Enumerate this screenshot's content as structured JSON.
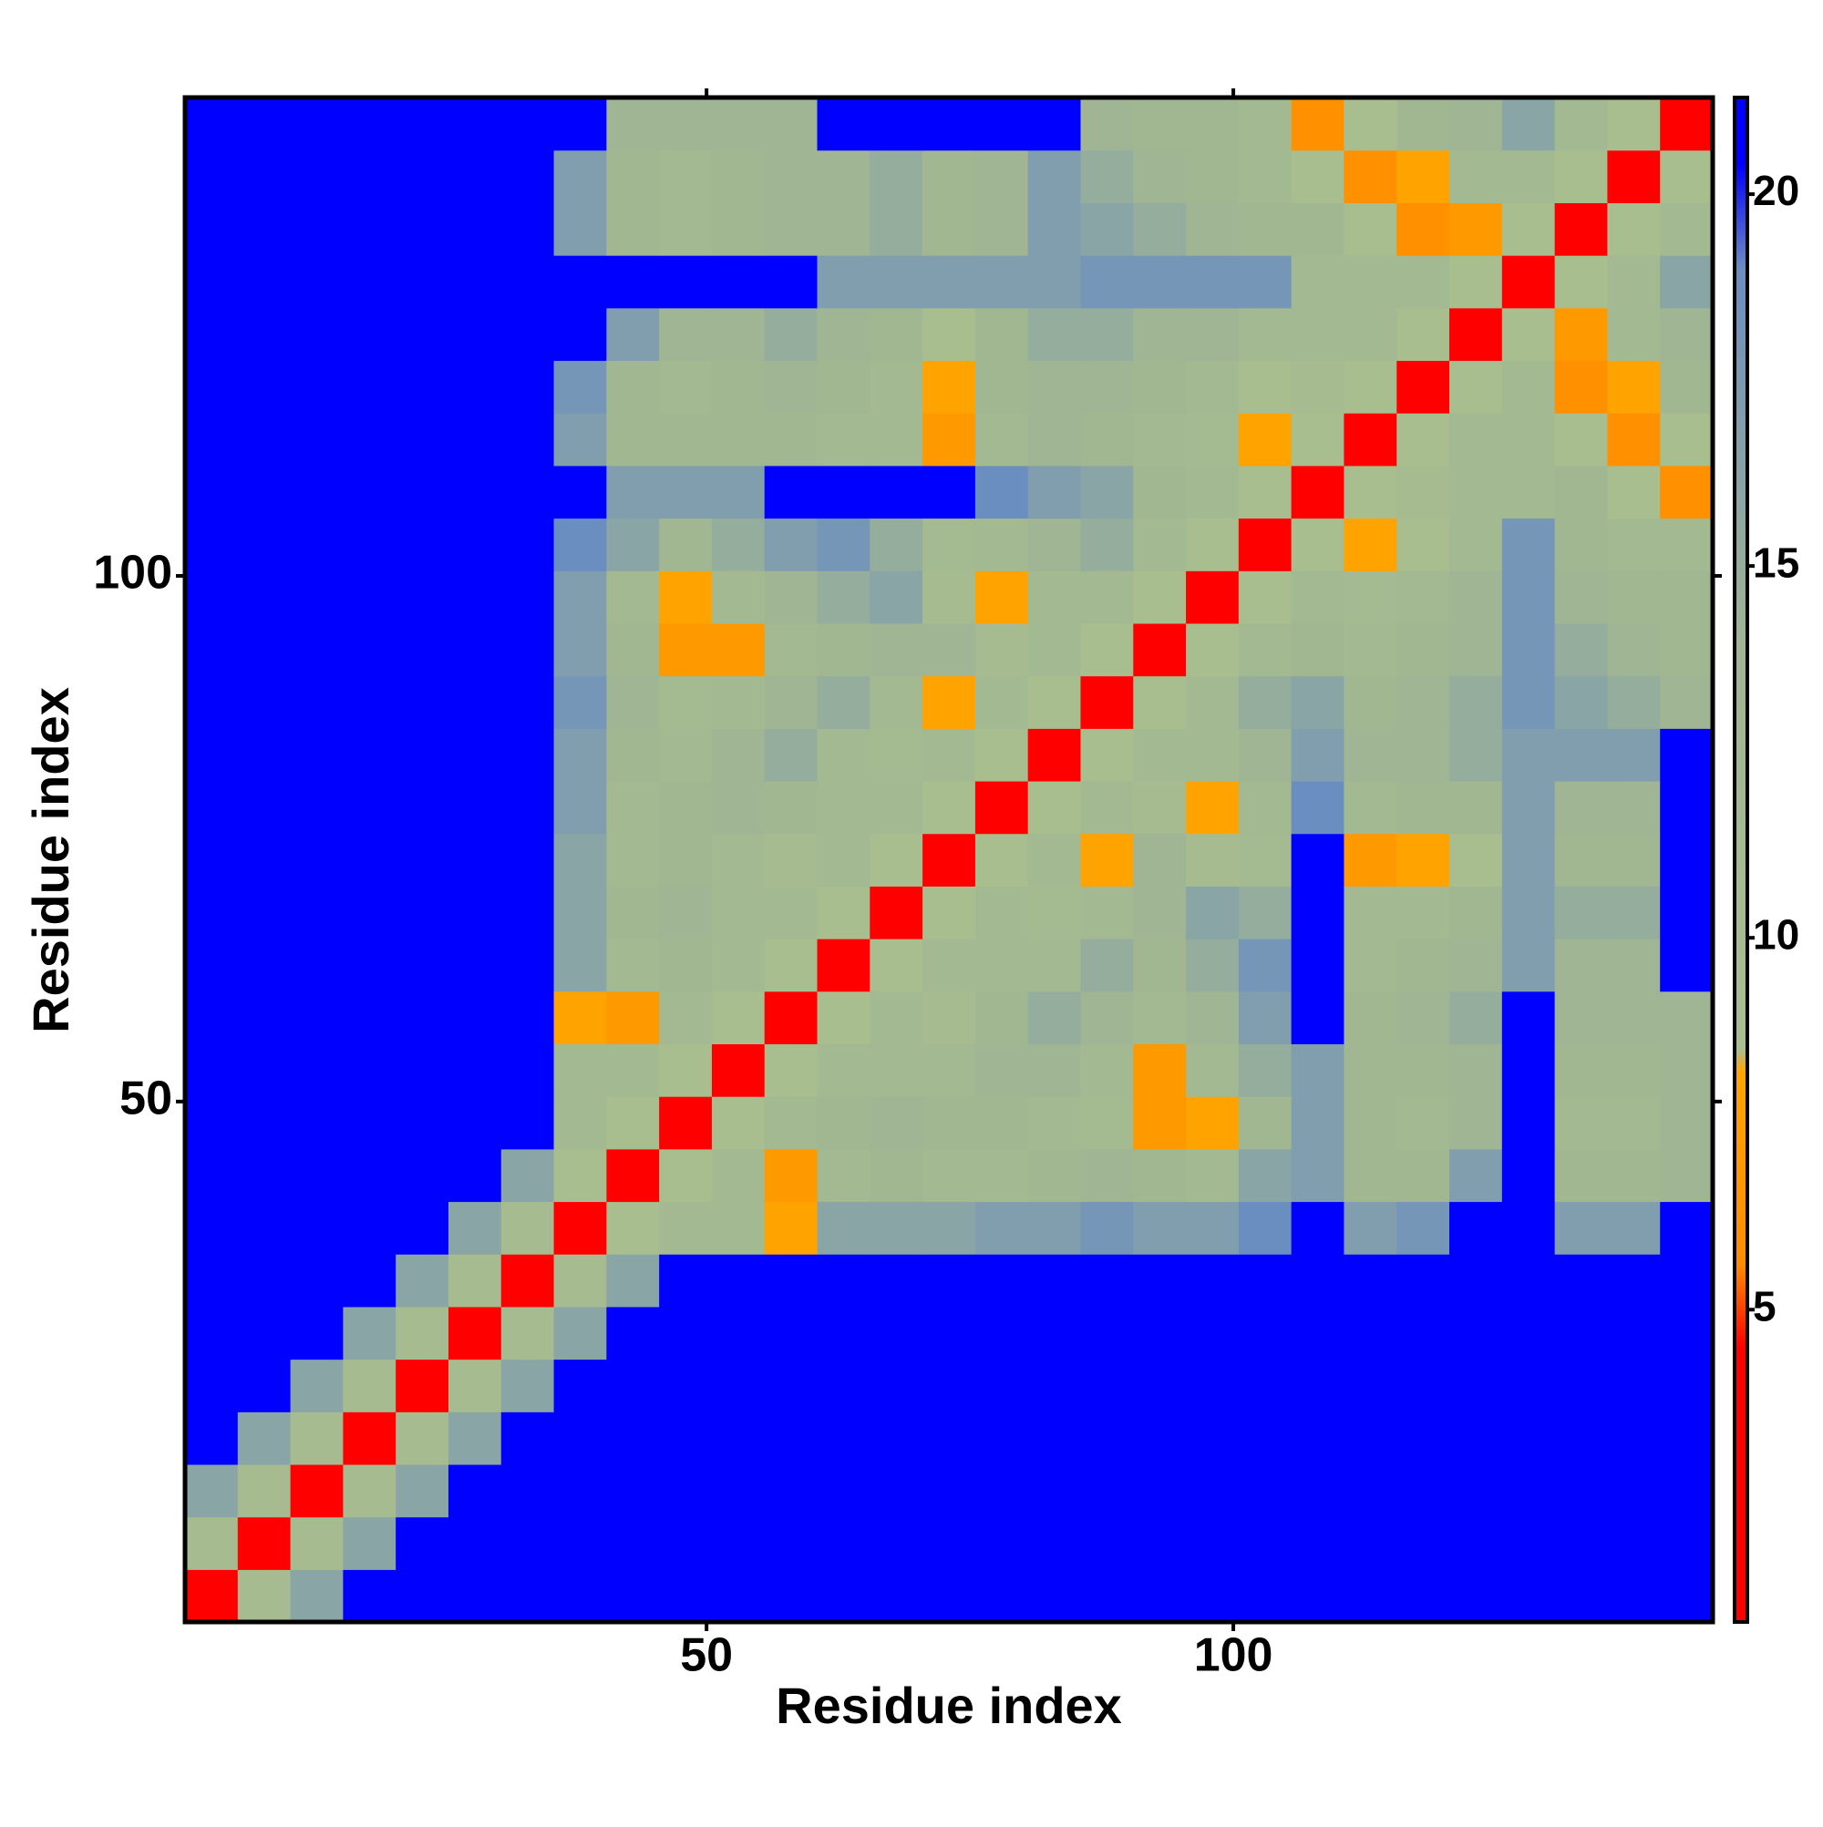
{
  "chart_data": {
    "type": "heatmap",
    "x_label": "Residue index",
    "y_label": "Residue index",
    "x": [
      3,
      8,
      13,
      18,
      23,
      28,
      33,
      38,
      43,
      48,
      53,
      58,
      63,
      68,
      73,
      78,
      83,
      88,
      93,
      98,
      103,
      108,
      113,
      118,
      123,
      128,
      133,
      138,
      143
    ],
    "y": [
      3,
      8,
      13,
      18,
      23,
      28,
      33,
      38,
      43,
      48,
      53,
      58,
      63,
      68,
      73,
      78,
      83,
      88,
      93,
      98,
      103,
      108,
      113,
      118,
      123,
      128,
      133,
      138,
      143
    ],
    "xlim": [
      0.5,
      145.5
    ],
    "ylim": [
      0.5,
      145.5
    ],
    "xticks": [
      50,
      100
    ],
    "yticks": [
      50,
      100
    ],
    "z": [
      [
        3,
        10,
        16,
        21,
        21,
        21,
        21,
        21,
        21,
        21,
        21,
        21,
        21,
        21,
        21,
        21,
        21,
        21,
        21,
        21,
        21,
        21,
        21,
        21,
        21,
        21,
        21,
        21,
        21
      ],
      [
        10,
        3,
        10,
        16,
        21,
        21,
        21,
        21,
        21,
        21,
        21,
        21,
        21,
        21,
        21,
        21,
        21,
        21,
        21,
        21,
        21,
        21,
        21,
        21,
        21,
        21,
        21,
        21,
        21
      ],
      [
        16,
        10,
        3,
        10,
        16,
        21,
        21,
        21,
        21,
        21,
        21,
        21,
        21,
        21,
        21,
        21,
        21,
        21,
        21,
        21,
        21,
        21,
        21,
        21,
        21,
        21,
        21,
        21,
        21
      ],
      [
        21,
        16,
        10,
        3,
        10,
        16,
        21,
        21,
        21,
        21,
        21,
        21,
        21,
        21,
        21,
        21,
        21,
        21,
        21,
        21,
        21,
        21,
        21,
        21,
        21,
        21,
        21,
        21,
        21
      ],
      [
        21,
        21,
        16,
        10,
        3,
        10,
        16,
        21,
        21,
        21,
        21,
        21,
        21,
        21,
        21,
        21,
        21,
        21,
        21,
        21,
        21,
        21,
        21,
        21,
        21,
        21,
        21,
        21,
        21
      ],
      [
        21,
        21,
        21,
        16,
        10,
        3,
        10,
        16,
        21,
        21,
        21,
        21,
        21,
        21,
        21,
        21,
        21,
        21,
        21,
        21,
        21,
        21,
        21,
        21,
        21,
        21,
        21,
        21,
        21
      ],
      [
        21,
        21,
        21,
        21,
        16,
        10,
        3,
        10,
        16,
        21,
        21,
        21,
        21,
        21,
        21,
        21,
        21,
        21,
        21,
        21,
        21,
        21,
        21,
        21,
        21,
        21,
        21,
        21,
        21
      ],
      [
        21,
        21,
        21,
        21,
        21,
        16,
        10,
        3,
        9,
        12,
        12,
        8,
        16,
        16,
        16,
        17,
        17,
        18,
        17,
        17,
        19,
        21,
        17,
        18,
        21,
        21,
        17,
        17,
        21
      ],
      [
        21,
        21,
        21,
        21,
        21,
        21,
        16,
        9,
        3,
        9,
        12,
        7,
        12,
        13,
        12,
        12,
        13,
        14,
        13,
        12,
        16,
        17,
        13,
        13,
        17,
        21,
        13,
        13,
        14
      ],
      [
        21,
        21,
        21,
        21,
        21,
        21,
        21,
        12,
        9,
        3,
        9,
        12,
        13,
        14,
        13,
        13,
        12,
        11,
        7,
        8,
        13,
        17,
        13,
        12,
        14,
        21,
        12,
        12,
        14
      ],
      [
        21,
        21,
        21,
        21,
        21,
        21,
        21,
        12,
        12,
        9,
        3,
        9,
        12,
        12,
        12,
        14,
        14,
        12,
        7,
        12,
        15,
        17,
        13,
        13,
        14,
        21,
        13,
        13,
        14
      ],
      [
        21,
        21,
        21,
        21,
        21,
        21,
        21,
        8,
        7,
        12,
        9,
        3,
        9,
        12,
        10,
        13,
        15,
        14,
        12,
        14,
        17,
        21,
        13,
        14,
        15,
        21,
        14,
        14,
        14
      ],
      [
        21,
        21,
        21,
        21,
        21,
        21,
        21,
        16,
        12,
        13,
        12,
        9,
        3,
        9,
        12,
        12,
        12,
        15,
        13,
        15,
        18,
        21,
        12,
        13,
        14,
        17,
        14,
        14,
        21
      ],
      [
        21,
        21,
        21,
        21,
        21,
        21,
        21,
        16,
        13,
        14,
        12,
        12,
        9,
        3,
        9,
        12,
        11,
        12,
        14,
        16,
        15,
        21,
        12,
        12,
        13,
        17,
        15,
        15,
        21
      ],
      [
        21,
        21,
        21,
        21,
        21,
        21,
        21,
        16,
        12,
        13,
        12,
        10,
        12,
        9,
        3,
        9,
        12,
        8,
        14,
        10,
        11,
        21,
        7,
        8,
        9,
        17,
        13,
        13,
        21
      ],
      [
        21,
        21,
        21,
        21,
        21,
        21,
        21,
        17,
        12,
        13,
        14,
        13,
        12,
        12,
        9,
        3,
        9,
        12,
        10,
        8,
        12,
        19,
        12,
        13,
        13,
        17,
        14,
        14,
        21
      ],
      [
        21,
        21,
        21,
        21,
        21,
        21,
        21,
        17,
        13,
        12,
        14,
        15,
        12,
        11,
        12,
        9,
        3,
        9,
        12,
        12,
        14,
        17,
        14,
        14,
        15,
        17,
        17,
        17,
        21
      ],
      [
        21,
        21,
        21,
        21,
        21,
        21,
        21,
        18,
        14,
        11,
        12,
        14,
        15,
        12,
        8,
        12,
        9,
        3,
        9,
        12,
        15,
        16,
        13,
        14,
        15,
        18,
        16,
        15,
        14
      ],
      [
        21,
        21,
        21,
        21,
        21,
        21,
        21,
        17,
        13,
        7,
        7,
        12,
        13,
        14,
        14,
        10,
        12,
        9,
        3,
        9,
        12,
        13,
        12,
        13,
        14,
        18,
        15,
        14,
        13
      ],
      [
        21,
        21,
        21,
        21,
        21,
        21,
        21,
        17,
        12,
        8,
        12,
        14,
        15,
        16,
        10,
        8,
        12,
        12,
        9,
        3,
        9,
        12,
        11,
        12,
        14,
        18,
        14,
        13,
        13
      ],
      [
        21,
        21,
        21,
        21,
        21,
        21,
        21,
        19,
        16,
        13,
        15,
        17,
        18,
        15,
        11,
        12,
        14,
        15,
        12,
        9,
        3,
        9,
        8,
        9,
        12,
        18,
        13,
        12,
        12
      ],
      [
        21,
        21,
        21,
        21,
        21,
        21,
        21,
        21,
        17,
        17,
        17,
        21,
        21,
        21,
        21,
        19,
        17,
        16,
        13,
        12,
        9,
        3,
        9,
        10,
        12,
        12,
        13,
        9,
        6
      ],
      [
        21,
        21,
        21,
        21,
        21,
        21,
        21,
        17,
        13,
        13,
        13,
        13,
        12,
        12,
        7,
        12,
        14,
        13,
        12,
        11,
        8,
        9,
        3,
        9,
        12,
        12,
        9,
        6,
        9
      ],
      [
        21,
        21,
        21,
        21,
        21,
        21,
        21,
        18,
        13,
        12,
        13,
        14,
        13,
        12,
        8,
        13,
        14,
        14,
        13,
        12,
        9,
        10,
        9,
        3,
        9,
        12,
        6,
        8,
        13
      ],
      [
        21,
        21,
        21,
        21,
        21,
        21,
        21,
        21,
        17,
        14,
        14,
        15,
        14,
        13,
        9,
        13,
        15,
        15,
        14,
        14,
        12,
        12,
        12,
        9,
        3,
        9,
        7,
        12,
        14
      ],
      [
        21,
        21,
        21,
        21,
        21,
        21,
        21,
        21,
        21,
        21,
        21,
        21,
        17,
        17,
        17,
        17,
        17,
        18,
        18,
        18,
        18,
        12,
        12,
        12,
        9,
        3,
        9,
        12,
        16
      ],
      [
        21,
        21,
        21,
        21,
        21,
        21,
        21,
        17,
        13,
        12,
        13,
        14,
        14,
        15,
        13,
        14,
        17,
        16,
        15,
        14,
        13,
        13,
        9,
        6,
        7,
        9,
        3,
        9,
        12
      ],
      [
        21,
        21,
        21,
        21,
        21,
        21,
        21,
        17,
        13,
        12,
        13,
        14,
        14,
        15,
        13,
        14,
        17,
        15,
        14,
        13,
        12,
        9,
        6,
        8,
        12,
        12,
        9,
        3,
        9
      ],
      [
        21,
        21,
        21,
        21,
        21,
        21,
        21,
        21,
        14,
        14,
        14,
        14,
        21,
        21,
        21,
        21,
        21,
        14,
        13,
        13,
        12,
        6,
        9,
        13,
        14,
        16,
        12,
        9,
        3
      ]
    ],
    "colorbar": {
      "zlim": [
        0.8,
        21.3
      ],
      "ticks": [
        5,
        10,
        15,
        20
      ],
      "colorscale": [
        [
          0.8,
          "#ff0000"
        ],
        [
          4.5,
          "#ff0000"
        ],
        [
          5.6,
          "#ff8c00"
        ],
        [
          8.2,
          "#ffa500"
        ],
        [
          8.5,
          "#a9bf8f"
        ],
        [
          14,
          "#9fb593"
        ],
        [
          19,
          "#6b8ec0"
        ],
        [
          20.4,
          "#0000ff"
        ],
        [
          21.3,
          "#0000ff"
        ]
      ]
    }
  }
}
